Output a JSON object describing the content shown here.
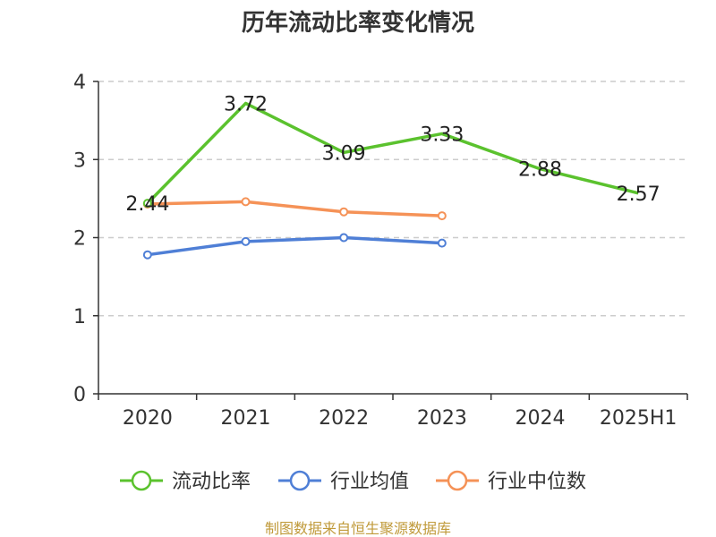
{
  "chart_data": {
    "type": "line",
    "title": "历年流动比率变化情况",
    "categories": [
      "2020",
      "2021",
      "2022",
      "2023",
      "2024",
      "2025H1"
    ],
    "ylim": [
      0,
      4
    ],
    "yticks": [
      "0",
      "1",
      "2",
      "3",
      "4"
    ],
    "grid": true,
    "legend_position": "bottom",
    "series": [
      {
        "name": "流动比率",
        "color": "#5bc22e",
        "values": [
          2.44,
          3.72,
          3.09,
          3.33,
          2.88,
          2.57
        ],
        "labels": [
          "2.44",
          "3.72",
          "3.09",
          "3.33",
          "2.88",
          "2.57"
        ]
      },
      {
        "name": "行业均值",
        "color": "#4f7fd6",
        "values": [
          1.78,
          1.95,
          2.0,
          1.93,
          null,
          null
        ]
      },
      {
        "name": "行业中位数",
        "color": "#f59257",
        "values": [
          2.43,
          2.46,
          2.33,
          2.28,
          null,
          null
        ]
      }
    ]
  },
  "source_text": "制图数据来自恒生聚源数据库"
}
